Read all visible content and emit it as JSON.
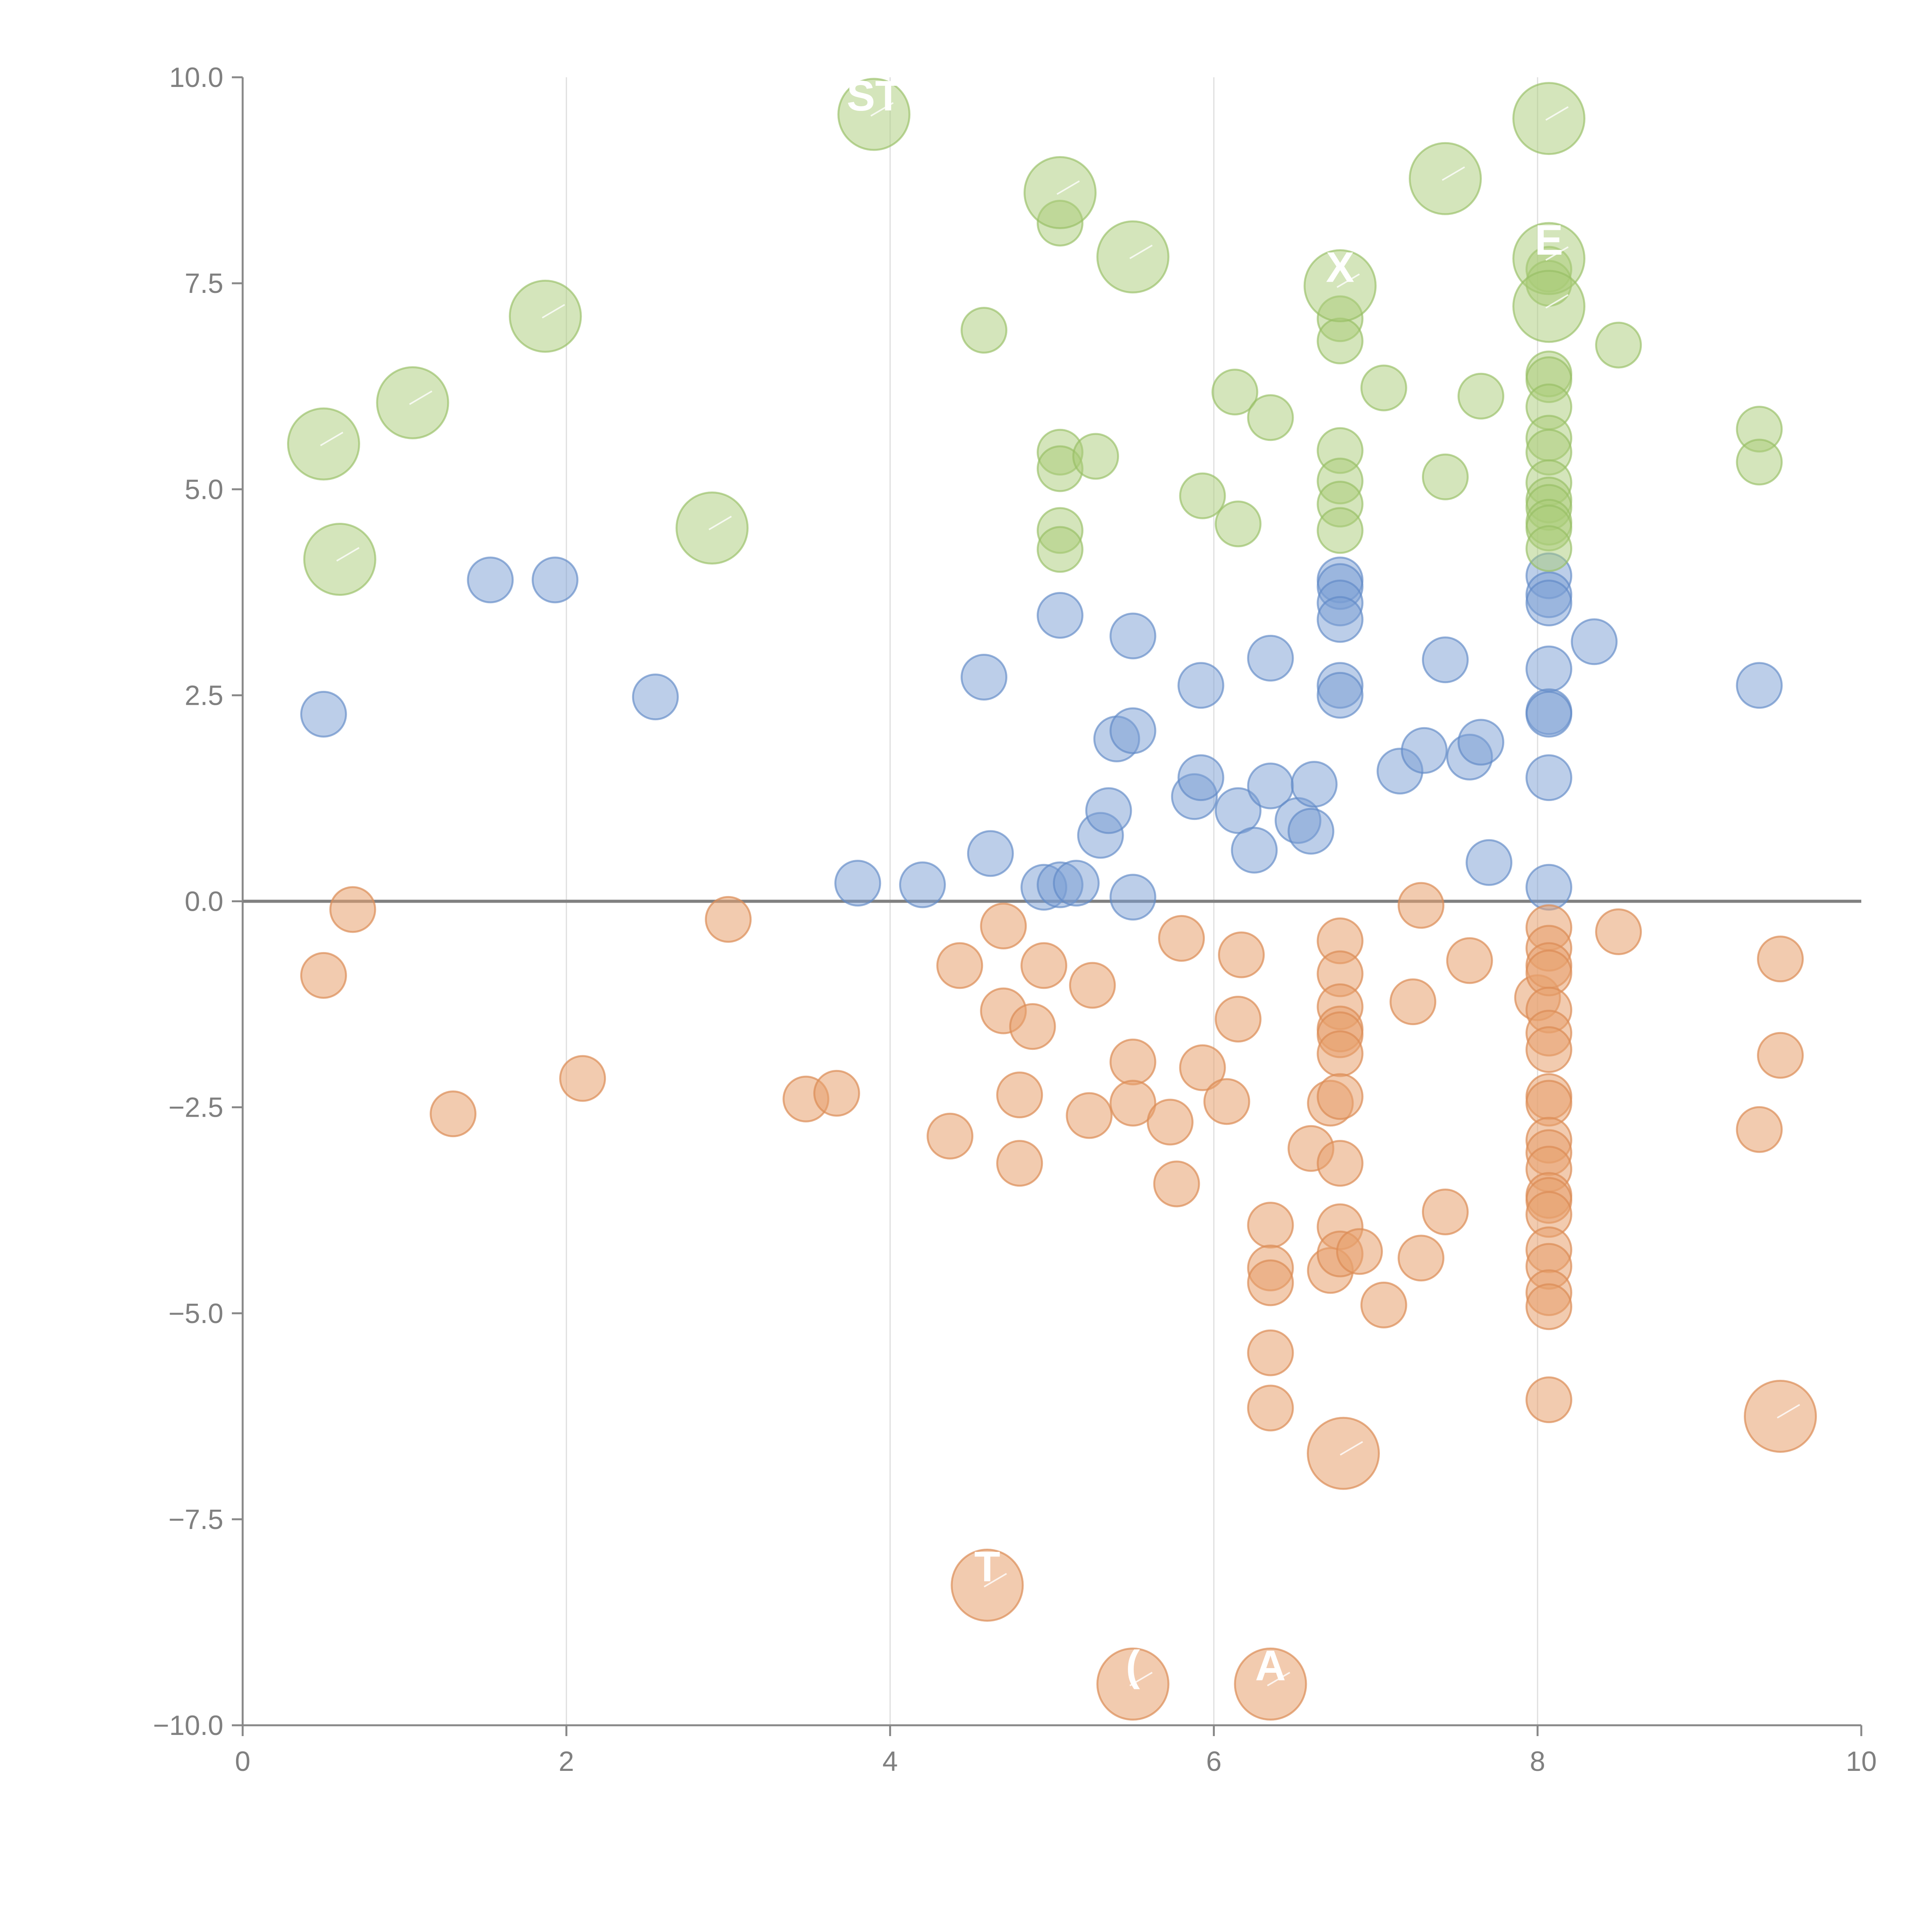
{
  "chart_data": {
    "type": "scatter",
    "title": "",
    "xlabel": "",
    "ylabel": "",
    "xlim": [
      0,
      10
    ],
    "ylim": [
      -10,
      10
    ],
    "x_ticks": [
      "0",
      "2",
      "4",
      "6",
      "8",
      "10"
    ],
    "y_ticks": [
      "−10.0",
      "−7.5",
      "−5.0",
      "−2.5",
      "0.0",
      "2.5",
      "5.0",
      "7.5",
      "10.0"
    ],
    "grid": "vertical gridlines at x ticks",
    "reference_line": {
      "y": 0
    },
    "series": [
      {
        "name": "blue",
        "color": "#799ed4",
        "points": [
          [
            0.5,
            2.27
          ],
          [
            1.53,
            3.9
          ],
          [
            1.93,
            3.9
          ],
          [
            2.55,
            2.48
          ],
          [
            3.8,
            0.22
          ],
          [
            4.2,
            0.2
          ],
          [
            4.58,
            2.72
          ],
          [
            4.62,
            0.58
          ],
          [
            4.95,
            0.17
          ],
          [
            5.05,
            0.2
          ],
          [
            5.05,
            3.47
          ],
          [
            5.15,
            0.22
          ],
          [
            5.3,
            0.8
          ],
          [
            5.35,
            1.1
          ],
          [
            5.4,
            1.97
          ],
          [
            5.5,
            3.22
          ],
          [
            5.5,
            2.07
          ],
          [
            5.5,
            0.05
          ],
          [
            5.88,
            1.27
          ],
          [
            5.92,
            1.5
          ],
          [
            5.92,
            2.62
          ],
          [
            6.15,
            1.1
          ],
          [
            6.25,
            0.62
          ],
          [
            6.35,
            1.4
          ],
          [
            6.35,
            2.95
          ],
          [
            6.52,
            0.98
          ],
          [
            6.6,
            0.85
          ],
          [
            6.62,
            1.42
          ],
          [
            6.78,
            3.9
          ],
          [
            6.78,
            3.82
          ],
          [
            6.78,
            3.62
          ],
          [
            6.78,
            3.42
          ],
          [
            6.78,
            2.62
          ],
          [
            6.78,
            2.5
          ],
          [
            7.15,
            1.58
          ],
          [
            7.3,
            1.83
          ],
          [
            7.43,
            2.93
          ],
          [
            7.58,
            1.75
          ],
          [
            7.65,
            1.93
          ],
          [
            7.7,
            0.47
          ],
          [
            8.07,
            3.95
          ],
          [
            8.07,
            3.72
          ],
          [
            8.07,
            3.62
          ],
          [
            8.07,
            2.82
          ],
          [
            8.07,
            2.3
          ],
          [
            8.07,
            2.27
          ],
          [
            8.07,
            1.5
          ],
          [
            8.07,
            0.17
          ],
          [
            8.35,
            3.15
          ],
          [
            9.37,
            2.62
          ]
        ]
      },
      {
        "name": "orange",
        "color": "#e8a06e",
        "points": [
          [
            0.68,
            -0.1
          ],
          [
            0.5,
            -0.9
          ],
          [
            1.3,
            -2.58
          ],
          [
            2.1,
            -2.15
          ],
          [
            3.0,
            -0.22
          ],
          [
            3.48,
            -2.4
          ],
          [
            3.67,
            -2.33
          ],
          [
            4.37,
            -2.85
          ],
          [
            4.43,
            -0.78
          ],
          [
            4.7,
            -0.3
          ],
          [
            4.7,
            -1.33
          ],
          [
            4.8,
            -2.35
          ],
          [
            4.8,
            -3.18
          ],
          [
            4.88,
            -1.52
          ],
          [
            4.95,
            -0.78
          ],
          [
            5.23,
            -2.6
          ],
          [
            5.25,
            -1.02
          ],
          [
            5.5,
            -1.95
          ],
          [
            5.5,
            -2.45
          ],
          [
            5.73,
            -2.68
          ],
          [
            5.8,
            -0.45
          ],
          [
            5.77,
            -3.43
          ],
          [
            5.93,
            -2.02
          ],
          [
            6.08,
            -2.43
          ],
          [
            6.15,
            -1.43
          ],
          [
            6.17,
            -0.65
          ],
          [
            6.35,
            -3.93
          ],
          [
            6.35,
            -4.45
          ],
          [
            6.35,
            -4.63
          ],
          [
            6.35,
            -5.48
          ],
          [
            6.35,
            -6.15
          ],
          [
            6.6,
            -3.0
          ],
          [
            6.72,
            -2.45
          ],
          [
            6.72,
            -4.48
          ],
          [
            6.78,
            -0.48
          ],
          [
            6.78,
            -0.88
          ],
          [
            6.78,
            -1.28
          ],
          [
            6.78,
            -1.55
          ],
          [
            6.78,
            -1.62
          ],
          [
            6.78,
            -1.85
          ],
          [
            6.78,
            -2.37
          ],
          [
            6.78,
            -3.18
          ],
          [
            6.78,
            -3.95
          ],
          [
            6.78,
            -4.28
          ],
          [
            6.9,
            -4.25
          ],
          [
            7.05,
            -4.9
          ],
          [
            7.23,
            -1.22
          ],
          [
            7.28,
            -0.05
          ],
          [
            7.28,
            -4.33
          ],
          [
            7.43,
            -3.77
          ],
          [
            7.58,
            -0.72
          ],
          [
            8.0,
            -1.17
          ],
          [
            8.07,
            -0.32
          ],
          [
            8.07,
            -0.57
          ],
          [
            8.07,
            -0.78
          ],
          [
            8.07,
            -0.87
          ],
          [
            8.07,
            -1.32
          ],
          [
            8.07,
            -1.6
          ],
          [
            8.07,
            -1.8
          ],
          [
            8.07,
            -2.37
          ],
          [
            8.07,
            -2.45
          ],
          [
            8.07,
            -2.9
          ],
          [
            8.07,
            -3.05
          ],
          [
            8.07,
            -3.25
          ],
          [
            8.07,
            -3.57
          ],
          [
            8.07,
            -3.63
          ],
          [
            8.07,
            -3.8
          ],
          [
            8.07,
            -4.23
          ],
          [
            8.07,
            -4.43
          ],
          [
            8.07,
            -4.75
          ],
          [
            8.07,
            -4.92
          ],
          [
            8.07,
            -6.05
          ],
          [
            8.5,
            -0.37
          ],
          [
            9.37,
            -2.77
          ],
          [
            9.5,
            -0.7
          ],
          [
            9.5,
            -1.87
          ]
        ]
      },
      {
        "name": "green",
        "color": "#aacc78",
        "points": [
          [
            4.58,
            6.93
          ],
          [
            5.05,
            8.23
          ],
          [
            5.05,
            5.45
          ],
          [
            5.05,
            5.25
          ],
          [
            5.05,
            4.5
          ],
          [
            5.05,
            4.27
          ],
          [
            5.27,
            5.4
          ],
          [
            5.93,
            4.92
          ],
          [
            6.13,
            6.18
          ],
          [
            6.15,
            4.58
          ],
          [
            6.35,
            5.87
          ],
          [
            6.78,
            7.07
          ],
          [
            6.78,
            6.8
          ],
          [
            6.78,
            5.47
          ],
          [
            6.78,
            5.1
          ],
          [
            6.78,
            4.82
          ],
          [
            6.78,
            4.5
          ],
          [
            7.05,
            6.23
          ],
          [
            7.43,
            5.15
          ],
          [
            7.65,
            6.13
          ],
          [
            8.07,
            7.67
          ],
          [
            8.07,
            7.5
          ],
          [
            8.07,
            6.4
          ],
          [
            8.07,
            6.33
          ],
          [
            8.07,
            6.0
          ],
          [
            8.07,
            5.62
          ],
          [
            8.07,
            5.45
          ],
          [
            8.07,
            5.08
          ],
          [
            8.07,
            4.87
          ],
          [
            8.07,
            4.78
          ],
          [
            8.07,
            4.6
          ],
          [
            8.07,
            4.53
          ],
          [
            8.07,
            4.28
          ],
          [
            8.5,
            6.75
          ],
          [
            9.37,
            5.73
          ],
          [
            9.37,
            5.33
          ]
        ]
      }
    ],
    "bubbles": [
      {
        "group": "orange",
        "x": 4.6,
        "y": -8.3,
        "label": "T"
      },
      {
        "group": "orange",
        "x": 5.5,
        "y": -9.5,
        "label": "("
      },
      {
        "group": "orange",
        "x": 6.35,
        "y": -9.5,
        "label": "A"
      },
      {
        "group": "orange",
        "x": 6.8,
        "y": -6.7,
        "label": ""
      },
      {
        "group": "orange",
        "x": 9.5,
        "y": -6.25,
        "label": ""
      },
      {
        "group": "green",
        "x": 0.5,
        "y": 5.55,
        "label": ""
      },
      {
        "group": "green",
        "x": 0.6,
        "y": 4.15,
        "label": ""
      },
      {
        "group": "green",
        "x": 1.05,
        "y": 6.05,
        "label": ""
      },
      {
        "group": "green",
        "x": 1.87,
        "y": 7.1,
        "label": ""
      },
      {
        "group": "green",
        "x": 2.9,
        "y": 4.53,
        "label": ""
      },
      {
        "group": "green",
        "x": 3.9,
        "y": 9.55,
        "label": "ST"
      },
      {
        "group": "green",
        "x": 5.05,
        "y": 8.6,
        "label": ""
      },
      {
        "group": "green",
        "x": 5.5,
        "y": 7.82,
        "label": ""
      },
      {
        "group": "green",
        "x": 6.78,
        "y": 7.47,
        "label": "X"
      },
      {
        "group": "green",
        "x": 7.43,
        "y": 8.77,
        "label": ""
      },
      {
        "group": "green",
        "x": 8.07,
        "y": 9.5,
        "label": ""
      },
      {
        "group": "green",
        "x": 8.07,
        "y": 7.8,
        "label": "E"
      },
      {
        "group": "green",
        "x": 8.07,
        "y": 7.22,
        "label": ""
      }
    ]
  }
}
